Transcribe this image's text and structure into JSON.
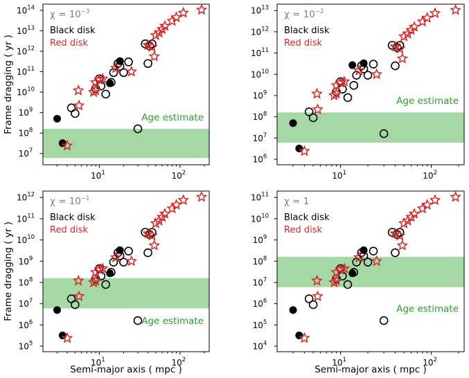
{
  "chart_data": {
    "type": "scatter",
    "xlabel": "Semi-major axis ( mpc )",
    "ylabel": "Frame dragging ( yr )",
    "x_scale": "log",
    "y_scale": "log",
    "xlim": [
      2.0,
      230
    ],
    "x_ticks": [
      10,
      100
    ],
    "legend": {
      "black": "Black disk",
      "red": "Red disk"
    },
    "age_band_label": "Age estimate",
    "band_color": "#a6d8a6",
    "black_color": "#000000",
    "red_color": "#d62728",
    "panels": [
      {
        "chi_label": "χ = 10",
        "chi_exp": "−3",
        "ylim": [
          2800000.0,
          200000000000000.0
        ],
        "y_ticks": [
          7,
          8,
          9,
          10,
          11,
          12,
          13,
          14
        ],
        "age_band": [
          6000000.0,
          160000000.0
        ],
        "age_label_y": 600000000.0,
        "black_filled": [
          [
            3.0,
            500000000.0
          ],
          [
            3.5,
            32000000.0
          ],
          [
            13.5,
            27000000000.0
          ],
          [
            18.0,
            330000000000.0
          ]
        ],
        "black_open": [
          [
            4.5,
            1700000000.0
          ],
          [
            5.0,
            900000000.0
          ],
          [
            9.0,
            15000000000.0
          ],
          [
            10.0,
            45000000000.0
          ],
          [
            10.5,
            20000000000.0
          ],
          [
            12.0,
            8000000000.0
          ],
          [
            14.0,
            30000000000.0
          ],
          [
            15.0,
            90000000000.0
          ],
          [
            17.0,
            250000000000.0
          ],
          [
            18.0,
            180000000000.0
          ],
          [
            20.0,
            90000000000.0
          ],
          [
            23.0,
            300000000000.0
          ],
          [
            30.0,
            160000000.0
          ],
          [
            37.0,
            2300000000000.0
          ],
          [
            40.0,
            250000000000.0
          ],
          [
            42.0,
            1800000000000.0
          ],
          [
            45.0,
            2300000000000.0
          ]
        ],
        "red_star": [
          [
            4.0,
            24000000.0
          ],
          [
            5.5,
            12000000000.0
          ],
          [
            5.6,
            2200000000.0
          ],
          [
            8.5,
            10000000000.0
          ],
          [
            9.0,
            30000000000.0
          ],
          [
            9.0,
            12000000000.0
          ],
          [
            10.0,
            40000000000.0
          ],
          [
            11.0,
            45000000000.0
          ],
          [
            16.0,
            150000000000.0
          ],
          [
            25.0,
            100000000000.0
          ],
          [
            40.0,
            2000000000000.0
          ],
          [
            45.0,
            1600000000000.0
          ],
          [
            48.0,
            550000000000.0
          ],
          [
            50.0,
            6000000000000.0
          ],
          [
            55.0,
            8000000000000.0
          ],
          [
            60.0,
            12000000000000.0
          ],
          [
            65.0,
            17000000000000.0
          ],
          [
            80.0,
            30000000000000.0
          ],
          [
            90.0,
            45000000000000.0
          ],
          [
            110.0,
            75000000000000.0
          ],
          [
            185.0,
            105000000000000.0
          ]
        ]
      },
      {
        "chi_label": "χ = 10",
        "chi_exp": "−2",
        "ylim": [
          550000.0,
          20000000000000.0
        ],
        "y_ticks": [
          6,
          7,
          8,
          9,
          10,
          11,
          12,
          13
        ],
        "age_band": [
          6000000.0,
          160000000.0
        ],
        "age_label_y": 600000000.0,
        "black_filled": [
          [
            3.0,
            50000000.0
          ],
          [
            3.5,
            3200000.0
          ],
          [
            13.5,
            27000000000.0
          ],
          [
            18.0,
            33000000000.0
          ]
        ],
        "black_open": [
          [
            4.5,
            170000000.0
          ],
          [
            5.0,
            90000000.0
          ],
          [
            9.0,
            1500000000.0
          ],
          [
            10.0,
            4500000000.0
          ],
          [
            10.5,
            2000000000.0
          ],
          [
            12.0,
            800000000.0
          ],
          [
            14.0,
            3000000000.0
          ],
          [
            15.0,
            9000000000.0
          ],
          [
            17.0,
            25000000000.0
          ],
          [
            18.0,
            18000000000.0
          ],
          [
            20.0,
            9000000000.0
          ],
          [
            23.0,
            30000000000.0
          ],
          [
            30.0,
            16000000.0
          ],
          [
            37.0,
            230000000000.0
          ],
          [
            40.0,
            25000000000.0
          ],
          [
            42.0,
            180000000000.0
          ],
          [
            45.0,
            230000000000.0
          ]
        ],
        "red_star": [
          [
            4.0,
            2400000.0
          ],
          [
            5.5,
            1200000000.0
          ],
          [
            5.6,
            220000000.0
          ],
          [
            8.5,
            1000000000.0
          ],
          [
            9.0,
            3000000000.0
          ],
          [
            9.0,
            1200000000.0
          ],
          [
            10.0,
            4000000000.0
          ],
          [
            11.0,
            4500000000.0
          ],
          [
            16.0,
            15000000000.0
          ],
          [
            25.0,
            10000000000.0
          ],
          [
            40.0,
            200000000000.0
          ],
          [
            45.0,
            160000000000.0
          ],
          [
            48.0,
            55000000000.0
          ],
          [
            50.0,
            600000000000.0
          ],
          [
            55.0,
            800000000000.0
          ],
          [
            60.0,
            1200000000000.0
          ],
          [
            65.0,
            1700000000000.0
          ],
          [
            80.0,
            3000000000000.0
          ],
          [
            90.0,
            4500000000000.0
          ],
          [
            110.0,
            7500000000000.0
          ],
          [
            185.0,
            10500000000000.0
          ]
        ]
      },
      {
        "chi_label": "χ = 10",
        "chi_exp": "−1",
        "ylim": [
          55000.0,
          2000000000000.0
        ],
        "y_ticks": [
          5,
          6,
          7,
          8,
          9,
          10,
          11,
          12
        ],
        "age_band": [
          6000000.0,
          160000000.0
        ],
        "age_label_y": 1600000.0,
        "black_filled": [
          [
            3.0,
            5000000.0
          ],
          [
            3.5,
            320000.0
          ],
          [
            13.5,
            270000000.0
          ],
          [
            18.0,
            3300000000.0
          ]
        ],
        "black_open": [
          [
            4.5,
            17000000.0
          ],
          [
            5.0,
            9000000.0
          ],
          [
            9.0,
            150000000.0
          ],
          [
            10.0,
            450000000.0
          ],
          [
            10.5,
            200000000.0
          ],
          [
            12.0,
            80000000.0
          ],
          [
            14.0,
            300000000.0
          ],
          [
            15.0,
            900000000.0
          ],
          [
            17.0,
            2500000000.0
          ],
          [
            18.0,
            1800000000.0
          ],
          [
            20.0,
            900000000.0
          ],
          [
            23.0,
            3000000000.0
          ],
          [
            30.0,
            1600000.0
          ],
          [
            37.0,
            23000000000.0
          ],
          [
            40.0,
            2500000000.0
          ],
          [
            42.0,
            18000000000.0
          ],
          [
            45.0,
            23000000000.0
          ]
        ],
        "red_star": [
          [
            4.0,
            240000.0
          ],
          [
            5.5,
            120000000.0
          ],
          [
            5.6,
            22000000.0
          ],
          [
            8.5,
            100000000.0
          ],
          [
            9.0,
            300000000.0
          ],
          [
            9.0,
            120000000.0
          ],
          [
            10.0,
            400000000.0
          ],
          [
            11.0,
            450000000.0
          ],
          [
            16.0,
            1500000000.0
          ],
          [
            25.0,
            1000000000.0
          ],
          [
            40.0,
            20000000000.0
          ],
          [
            45.0,
            16000000000.0
          ],
          [
            48.0,
            5500000000.0
          ],
          [
            50.0,
            60000000000.0
          ],
          [
            55.0,
            80000000000.0
          ],
          [
            60.0,
            120000000000.0
          ],
          [
            65.0,
            170000000000.0
          ],
          [
            80.0,
            300000000000.0
          ],
          [
            90.0,
            450000000000.0
          ],
          [
            110.0,
            750000000000.0
          ],
          [
            185.0,
            1050000000000.0
          ]
        ]
      },
      {
        "chi_label": "χ = 1",
        "chi_exp": "",
        "ylim": [
          5500.0,
          200000000000.0
        ],
        "y_ticks": [
          4,
          5,
          6,
          7,
          8,
          9,
          10,
          11
        ],
        "age_band": [
          6000000.0,
          160000000.0
        ],
        "age_label_y": 600000.0,
        "black_filled": [
          [
            3.0,
            500000.0
          ],
          [
            3.5,
            32000.0
          ],
          [
            13.5,
            27000000.0
          ],
          [
            18.0,
            330000000.0
          ]
        ],
        "black_open": [
          [
            4.5,
            1700000.0
          ],
          [
            5.0,
            900000.0
          ],
          [
            9.0,
            15000000.0
          ],
          [
            10.0,
            45000000.0
          ],
          [
            10.5,
            20000000.0
          ],
          [
            12.0,
            8000000.0
          ],
          [
            14.0,
            30000000.0
          ],
          [
            15.0,
            90000000.0
          ],
          [
            17.0,
            250000000.0
          ],
          [
            18.0,
            180000000.0
          ],
          [
            20.0,
            90000000.0
          ],
          [
            23.0,
            300000000.0
          ],
          [
            30.0,
            160000.0
          ],
          [
            37.0,
            2300000000.0
          ],
          [
            40.0,
            250000000.0
          ],
          [
            42.0,
            1800000000.0
          ],
          [
            45.0,
            2300000000.0
          ]
        ],
        "red_star": [
          [
            4.0,
            24000.0
          ],
          [
            5.5,
            12000000.0
          ],
          [
            5.6,
            2200000.0
          ],
          [
            8.5,
            10000000.0
          ],
          [
            9.0,
            30000000.0
          ],
          [
            9.0,
            12000000.0
          ],
          [
            10.0,
            40000000.0
          ],
          [
            11.0,
            45000000.0
          ],
          [
            16.0,
            150000000.0
          ],
          [
            25.0,
            100000000.0
          ],
          [
            40.0,
            2000000000.0
          ],
          [
            45.0,
            1600000000.0
          ],
          [
            48.0,
            550000000.0
          ],
          [
            50.0,
            6000000000.0
          ],
          [
            55.0,
            8000000000.0
          ],
          [
            60.0,
            12000000000.0
          ],
          [
            65.0,
            17000000000.0
          ],
          [
            80.0,
            30000000000.0
          ],
          [
            90.0,
            45000000000.0
          ],
          [
            110.0,
            75000000000.0
          ],
          [
            185.0,
            105000000000.0
          ]
        ]
      }
    ]
  }
}
